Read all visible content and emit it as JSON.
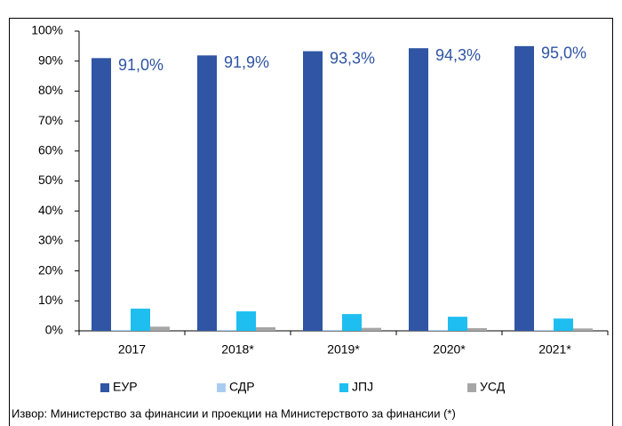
{
  "chart_data": {
    "type": "bar",
    "categories": [
      "2017",
      "2018*",
      "2019*",
      "2020*",
      "2021*"
    ],
    "series": [
      {
        "name": "ЕУР",
        "color": "#2f55a4",
        "values": [
          91.0,
          91.9,
          93.3,
          94.3,
          95.0
        ],
        "value_labels": [
          "91,0%",
          "91,9%",
          "93,3%",
          "94,3%",
          "95,0%"
        ]
      },
      {
        "name": "СДР",
        "color": "#a9cdf0",
        "values": [
          0.3,
          0.3,
          0.3,
          0.3,
          0.3
        ]
      },
      {
        "name": "ЈПЈ",
        "color": "#1ebef0",
        "values": [
          7.4,
          6.5,
          5.6,
          4.7,
          4.1
        ]
      },
      {
        "name": "УСД",
        "color": "#a6a6a6",
        "values": [
          1.4,
          1.2,
          1.0,
          0.9,
          0.8
        ]
      }
    ],
    "ylim": [
      0,
      100
    ],
    "yticks": [
      {
        "value": 0,
        "label": "0%"
      },
      {
        "value": 10,
        "label": "10%"
      },
      {
        "value": 20,
        "label": "20%"
      },
      {
        "value": 30,
        "label": "30%"
      },
      {
        "value": 40,
        "label": "40%"
      },
      {
        "value": 50,
        "label": "50%"
      },
      {
        "value": 60,
        "label": "60%"
      },
      {
        "value": 70,
        "label": "70%"
      },
      {
        "value": 80,
        "label": "80%"
      },
      {
        "value": 90,
        "label": "90%"
      },
      {
        "value": 100,
        "label": "100%"
      }
    ],
    "grid": false,
    "source": "Извор: Министерство за финансии и проекции на Министерството за финансии (*)"
  }
}
